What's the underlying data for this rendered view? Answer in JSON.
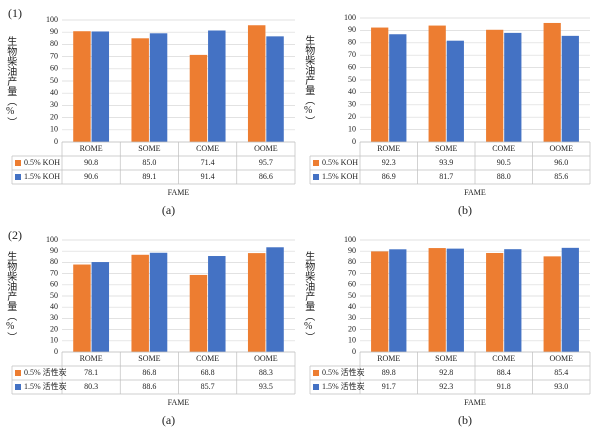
{
  "row_labels": [
    "(1)",
    "(2)"
  ],
  "chart_data": [
    {
      "type": "bar",
      "caption": "(a)",
      "ylabel": "生物柴油产量（%）",
      "xlabel": "FAME",
      "categories": [
        "ROME",
        "SOME",
        "COME",
        "OOME"
      ],
      "ylim": [
        0,
        100
      ],
      "yticks": [
        0,
        10,
        20,
        30,
        40,
        50,
        60,
        70,
        80,
        90,
        100
      ],
      "grid": true,
      "series": [
        {
          "name": "0.5% KOH",
          "color": "#ed7d31",
          "values": [
            90.8,
            85.0,
            71.4,
            95.7
          ],
          "value_labels": [
            "90.8",
            "85.0",
            "71.4",
            "95.7"
          ]
        },
        {
          "name": "1.5% KOH",
          "color": "#4472c4",
          "values": [
            90.6,
            89.1,
            91.4,
            86.6
          ],
          "value_labels": [
            "90.6",
            "89.1",
            "91.4",
            "86.6"
          ]
        }
      ]
    },
    {
      "type": "bar",
      "caption": "(b)",
      "ylabel": "生物柴油产量（%）",
      "xlabel": "FAME",
      "categories": [
        "ROME",
        "SOME",
        "COME",
        "OOME"
      ],
      "ylim": [
        0,
        100
      ],
      "yticks": [
        0,
        10,
        20,
        30,
        40,
        50,
        60,
        70,
        80,
        90,
        100
      ],
      "grid": true,
      "series": [
        {
          "name": "0.5% KOH",
          "color": "#ed7d31",
          "values": [
            92.3,
            93.9,
            90.5,
            96.0
          ],
          "value_labels": [
            "92.3",
            "93.9",
            "90.5",
            "96.0"
          ]
        },
        {
          "name": "1.5% KOH",
          "color": "#4472c4",
          "values": [
            86.9,
            81.7,
            88.0,
            85.6
          ],
          "value_labels": [
            "86.9",
            "81.7",
            "88.0",
            "85.6"
          ]
        }
      ]
    },
    {
      "type": "bar",
      "caption": "(a)",
      "ylabel": "生物柴油产量（%）",
      "xlabel": "FAME",
      "categories": [
        "ROME",
        "SOME",
        "COME",
        "OOME"
      ],
      "ylim": [
        0,
        100
      ],
      "yticks": [
        0,
        10,
        20,
        30,
        40,
        50,
        60,
        70,
        80,
        90,
        100
      ],
      "grid": true,
      "series": [
        {
          "name": "0.5% 活性炭",
          "color": "#ed7d31",
          "values": [
            78.1,
            86.8,
            68.8,
            88.3
          ],
          "value_labels": [
            "78.1",
            "86.8",
            "68.8",
            "88.3"
          ]
        },
        {
          "name": "1.5% 活性炭",
          "color": "#4472c4",
          "values": [
            80.3,
            88.6,
            85.7,
            93.5
          ],
          "value_labels": [
            "80.3",
            "88.6",
            "85.7",
            "93.5"
          ]
        }
      ]
    },
    {
      "type": "bar",
      "caption": "(b)",
      "ylabel": "生物柴油产量（%）",
      "xlabel": "FAME",
      "categories": [
        "ROME",
        "SOME",
        "COME",
        "OOME"
      ],
      "ylim": [
        0,
        100
      ],
      "yticks": [
        0,
        10,
        20,
        30,
        40,
        50,
        60,
        70,
        80,
        90,
        100
      ],
      "grid": true,
      "series": [
        {
          "name": "0.5% 活性炭",
          "color": "#ed7d31",
          "values": [
            89.8,
            92.8,
            88.4,
            85.4
          ],
          "value_labels": [
            "89.8",
            "92.8",
            "88.4",
            "85.4"
          ]
        },
        {
          "name": "1.5% 活性炭",
          "color": "#4472c4",
          "values": [
            91.7,
            92.3,
            91.8,
            93.0
          ],
          "value_labels": [
            "91.7",
            "92.3",
            "91.8",
            "93.0"
          ]
        }
      ]
    }
  ]
}
